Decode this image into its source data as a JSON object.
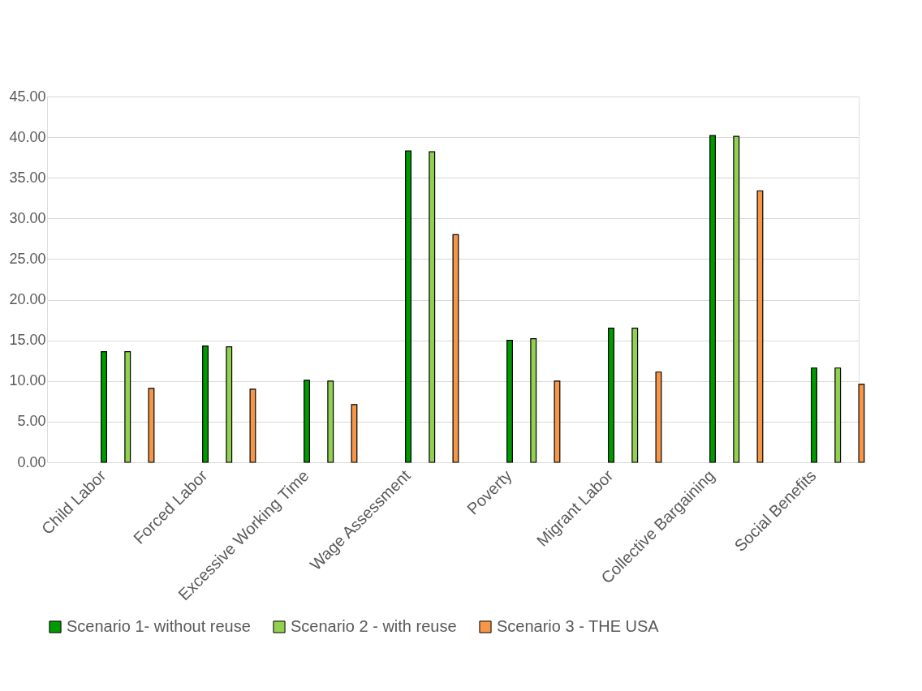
{
  "chart_data": {
    "type": "bar",
    "categories": [
      "Child Labor",
      "Forced Labor",
      "Excessive Working Time",
      "Wage Assessment",
      "Poverty",
      "Migrant Labor",
      "Collective Bargaining",
      "Social Benefits"
    ],
    "series": [
      {
        "name": "Scenario 1- without reuse",
        "color": "#009900",
        "values": [
          13.6,
          14.3,
          10.1,
          38.3,
          15.0,
          16.5,
          40.2,
          11.6
        ]
      },
      {
        "name": "Scenario 2 - with reuse",
        "color": "#92d050",
        "values": [
          13.6,
          14.2,
          10.0,
          38.2,
          15.2,
          16.5,
          40.1,
          11.6
        ]
      },
      {
        "name": "Scenario 3 - THE USA",
        "color": "#f79646",
        "values": [
          9.1,
          9.0,
          7.1,
          28.0,
          10.0,
          11.1,
          33.4,
          9.6
        ]
      }
    ],
    "ylim": [
      0,
      45
    ],
    "yticks": [
      {
        "value": 0,
        "label": "0.00"
      },
      {
        "value": 5,
        "label": "5.00"
      },
      {
        "value": 10,
        "label": "10.00"
      },
      {
        "value": 15,
        "label": "15.00"
      },
      {
        "value": 20,
        "label": "20.00"
      },
      {
        "value": 25,
        "label": "25.00"
      },
      {
        "value": 30,
        "label": "30.00"
      },
      {
        "value": 35,
        "label": "35.00"
      },
      {
        "value": 40,
        "label": "40.00"
      },
      {
        "value": 45,
        "label": "45.00"
      }
    ],
    "grid": "y",
    "legend": "bottom"
  }
}
